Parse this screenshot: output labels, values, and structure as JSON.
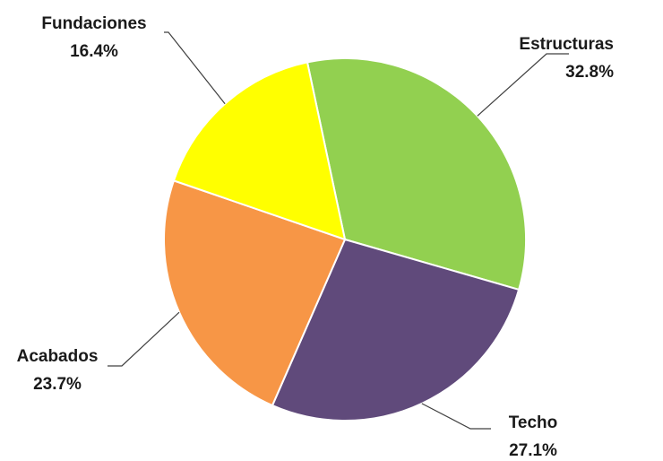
{
  "chart_data": {
    "type": "pie",
    "title": "",
    "slices": [
      {
        "label": "Estructuras",
        "value": 32.8,
        "value_label": "32.8%",
        "color": "#92d050"
      },
      {
        "label": "Techo",
        "value": 27.1,
        "value_label": "27.1%",
        "color": "#604a7b"
      },
      {
        "label": "Acabados",
        "value": 23.7,
        "value_label": "23.7%",
        "color": "#f79646"
      },
      {
        "label": "Fundaciones",
        "value": 16.4,
        "value_label": "16.4%",
        "color": "#ffff00"
      }
    ]
  }
}
